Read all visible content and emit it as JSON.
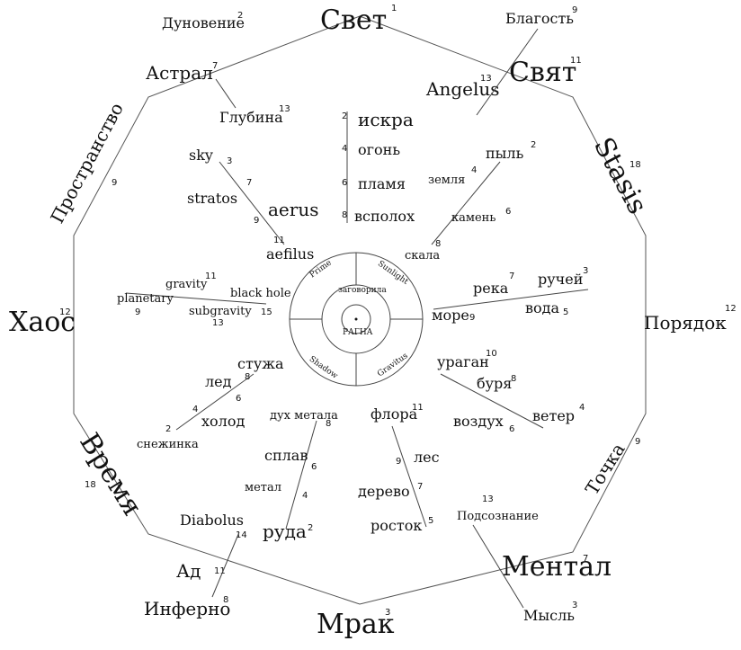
{
  "outer": {
    "top": {
      "label": "Свет",
      "n": "1"
    },
    "bottom": {
      "label": "Мрак",
      "n": "3"
    },
    "left": {
      "label": "Хаос",
      "n": "12"
    },
    "right": {
      "label": "Порядок",
      "n": "12"
    },
    "top_left": {
      "label": "Пространство",
      "n": "9"
    },
    "top_right": {
      "label": "Stasis",
      "n": "18"
    },
    "bottom_left": {
      "label": "Время",
      "n": "18"
    },
    "bottom_right": {
      "label": "Точка",
      "n": "9"
    }
  },
  "corners": {
    "duno": {
      "label": "Дуновение",
      "n": "2"
    },
    "astral": {
      "label": "Астрал",
      "n": "7"
    },
    "glubina": {
      "label": "Глубина",
      "n": "13"
    },
    "blagost": {
      "label": "Благость",
      "n": "9"
    },
    "svyat": {
      "label": "Свят",
      "n": "11"
    },
    "angelus": {
      "label": "Angelus",
      "n": "13"
    },
    "diabolus": {
      "label": "Diabolus",
      "n": "14"
    },
    "ad": {
      "label": "Ад",
      "n": "11"
    },
    "inferno": {
      "label": "Инферно",
      "n": "8"
    },
    "podsoz": {
      "label": "Подсознание",
      "n": "13"
    },
    "mental": {
      "label": "Ментал",
      "n": "7"
    },
    "mysl": {
      "label": "Мысль",
      "n": "3"
    }
  },
  "fire": [
    {
      "label": "искра",
      "n": "2"
    },
    {
      "label": "огонь",
      "n": "4"
    },
    {
      "label": "пламя",
      "n": "6"
    },
    {
      "label": "всполох",
      "n": "8"
    }
  ],
  "air_up": [
    {
      "label": "sky",
      "n": "3"
    },
    {
      "label": "stratos",
      "n": "7"
    },
    {
      "label": "aerus",
      "n": "9"
    },
    {
      "label": "aefilus",
      "n": "11"
    }
  ],
  "earth": [
    {
      "label": "пыль",
      "n": "2"
    },
    {
      "label": "земля",
      "n": "4"
    },
    {
      "label": "камень",
      "n": "6"
    },
    {
      "label": "скала",
      "n": "8"
    }
  ],
  "gravity": [
    {
      "label": "planetary",
      "n": "9"
    },
    {
      "label": "gravity",
      "n": "11"
    },
    {
      "label": "subgravity",
      "n": "13"
    },
    {
      "label": "black hole",
      "n": "15"
    }
  ],
  "water": [
    {
      "label": "море",
      "n": "9"
    },
    {
      "label": "река",
      "n": "7"
    },
    {
      "label": "вода",
      "n": "5"
    },
    {
      "label": "ручей",
      "n": "3"
    }
  ],
  "cold": [
    {
      "label": "стужа",
      "n": "8"
    },
    {
      "label": "лед",
      "n": "6"
    },
    {
      "label": "холод",
      "n": "4"
    },
    {
      "label": "снежинка",
      "n": "2"
    }
  ],
  "storm": [
    {
      "label": "ураган",
      "n": "10"
    },
    {
      "label": "буря",
      "n": "8"
    },
    {
      "label": "воздух",
      "n": "6"
    },
    {
      "label": "ветер",
      "n": "4"
    }
  ],
  "metal": [
    {
      "label": "дух метала",
      "n": "8"
    },
    {
      "label": "сплав",
      "n": "6"
    },
    {
      "label": "метал",
      "n": "4"
    },
    {
      "label": "руда",
      "n": "2"
    }
  ],
  "flora": [
    {
      "label": "флора",
      "n": "11"
    },
    {
      "label": "лес",
      "n": "9"
    },
    {
      "label": "дерево",
      "n": "7"
    },
    {
      "label": "росток",
      "n": "5"
    }
  ],
  "center": {
    "q1": "Prime",
    "q2": "Sunlight",
    "q3": "Shadow",
    "q4": "Gravitus",
    "ring": "заговорила",
    "core": "РАГНА"
  }
}
